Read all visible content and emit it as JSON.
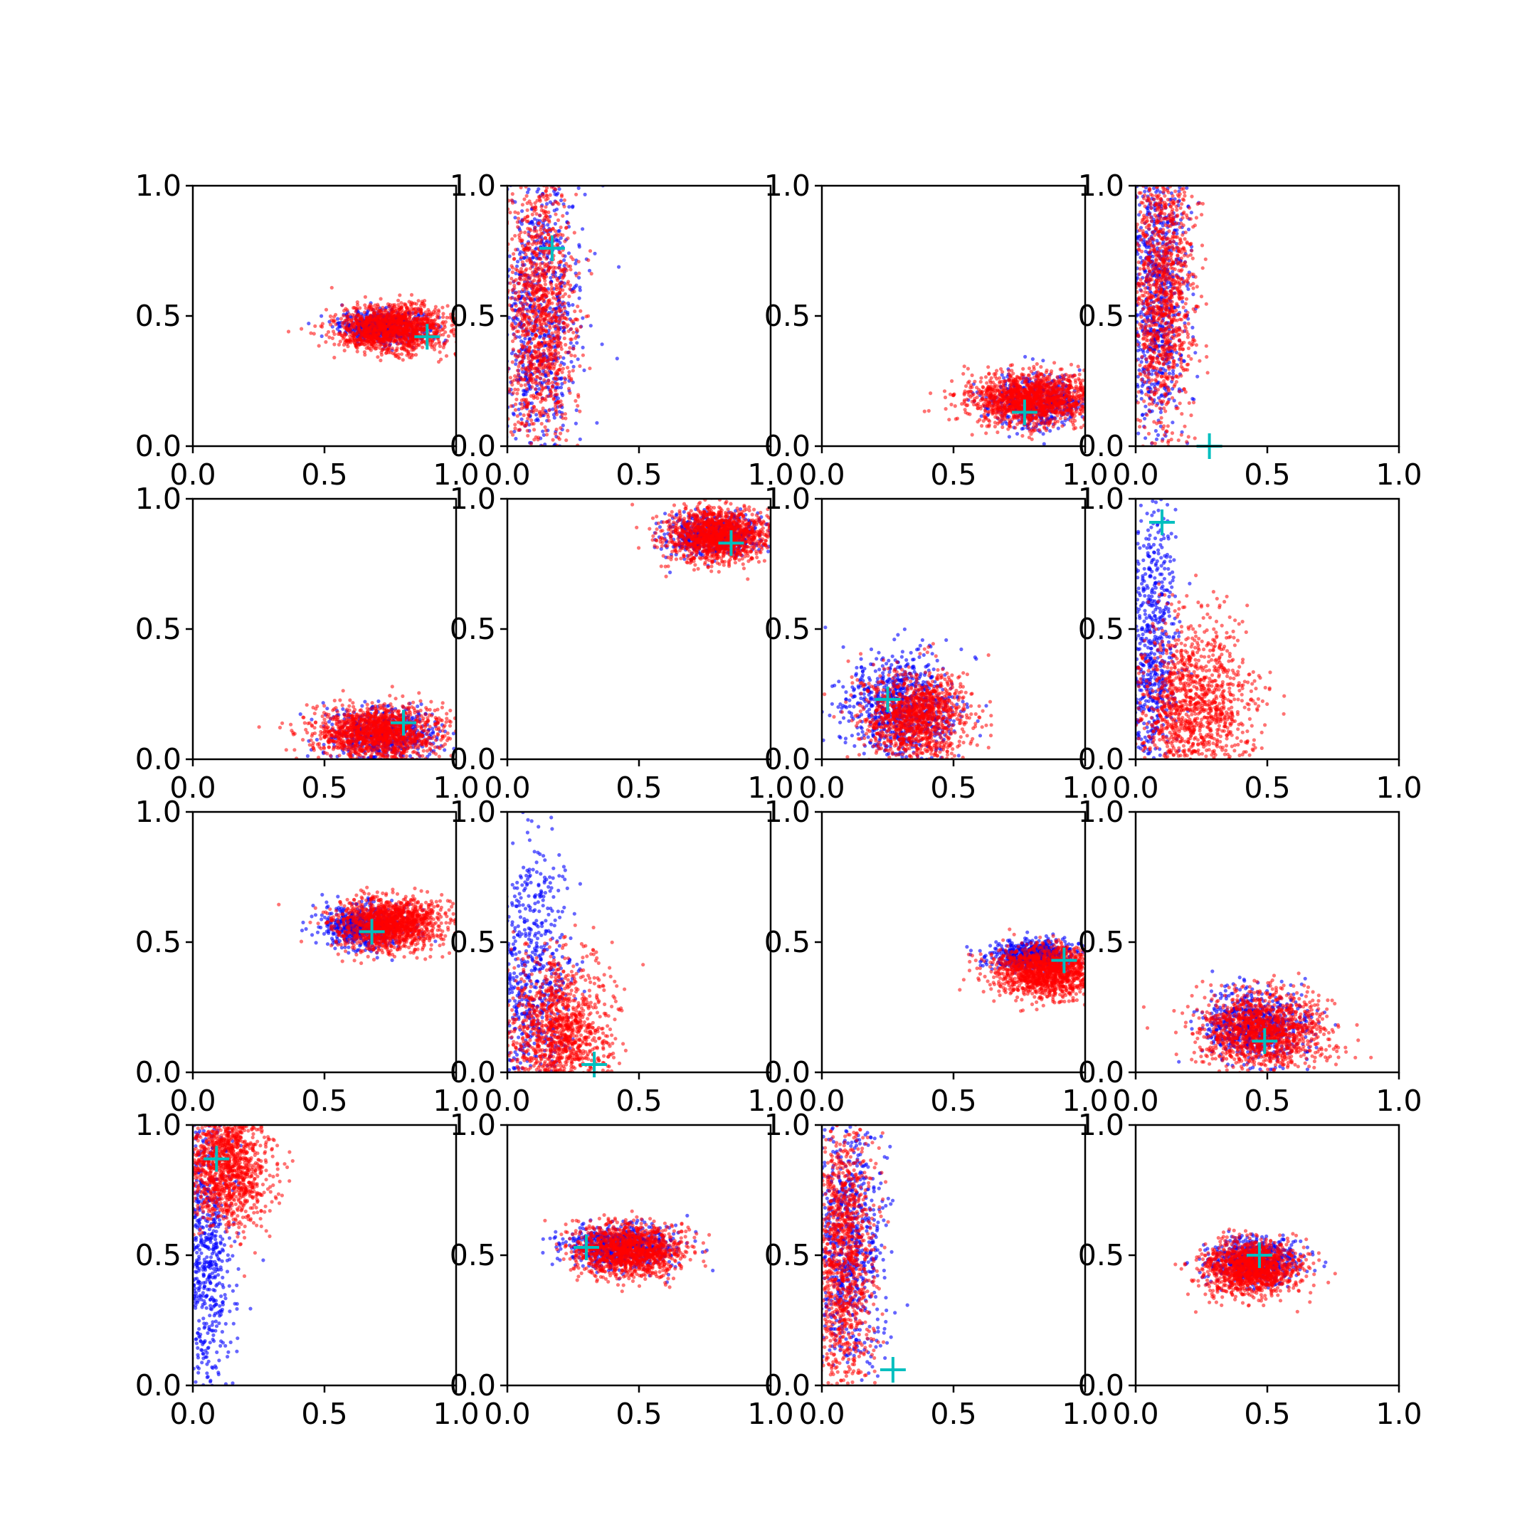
{
  "figure": {
    "rows": 4,
    "cols": 4
  },
  "colors": {
    "blue": "#0000ff",
    "red": "#ff0000",
    "marker": "#00bfbf",
    "axes": "#000000"
  },
  "chart_data": [
    {
      "type": "scatter",
      "row": 0,
      "col": 0,
      "xlim": [
        0,
        1
      ],
      "ylim": [
        0,
        1
      ],
      "xticks": [
        0,
        0.5,
        1
      ],
      "xtick_labels": [
        "0.0",
        "0.5",
        "1.0"
      ],
      "yticks": [
        0,
        0.5,
        1
      ],
      "ytick_labels": [
        "0.0",
        "0.5",
        "1.0"
      ],
      "marker": {
        "x": 0.89,
        "y": 0.42
      },
      "series": [
        {
          "color": "blue",
          "center": [
            0.72,
            0.46
          ],
          "spread": [
            0.08,
            0.03
          ],
          "count": 600
        },
        {
          "color": "red",
          "center": [
            0.76,
            0.45
          ],
          "spread": [
            0.11,
            0.045
          ],
          "count": 1400
        }
      ]
    },
    {
      "type": "scatter",
      "row": 0,
      "col": 1,
      "xlim": [
        0,
        1
      ],
      "ylim": [
        0,
        1
      ],
      "xticks": [
        0,
        0.5,
        1
      ],
      "xtick_labels": [
        "0.0",
        "0.5",
        "1.0"
      ],
      "yticks": [
        0,
        0.5,
        1
      ],
      "ytick_labels": [
        "0.0",
        "0.5",
        "1.0"
      ],
      "marker": {
        "x": 0.17,
        "y": 0.76
      },
      "series": [
        {
          "color": "blue",
          "center": [
            0.12,
            0.5
          ],
          "spread": [
            0.08,
            0.3
          ],
          "count": 800
        },
        {
          "color": "red",
          "center": [
            0.12,
            0.5
          ],
          "spread": [
            0.07,
            0.28
          ],
          "count": 1200
        }
      ]
    },
    {
      "type": "scatter",
      "row": 0,
      "col": 2,
      "xlim": [
        0,
        1
      ],
      "ylim": [
        0,
        1
      ],
      "xticks": [
        0,
        0.5,
        1
      ],
      "xtick_labels": [
        "0.0",
        "0.5",
        "1.0"
      ],
      "yticks": [
        0,
        0.5,
        1
      ],
      "ytick_labels": [
        "0.0",
        "0.5",
        "1.0"
      ],
      "marker": {
        "x": 0.77,
        "y": 0.13
      },
      "series": [
        {
          "color": "blue",
          "center": [
            0.82,
            0.17
          ],
          "spread": [
            0.09,
            0.05
          ],
          "count": 500
        },
        {
          "color": "red",
          "center": [
            0.8,
            0.18
          ],
          "spread": [
            0.12,
            0.05
          ],
          "count": 1500
        }
      ]
    },
    {
      "type": "scatter",
      "row": 0,
      "col": 3,
      "xlim": [
        0,
        1
      ],
      "ylim": [
        0,
        1
      ],
      "xticks": [
        0,
        0.5,
        1
      ],
      "xtick_labels": [
        "0.0",
        "0.5",
        "1.0"
      ],
      "yticks": [
        0,
        0.5,
        1
      ],
      "ytick_labels": [
        "0.0",
        "0.5",
        "1.0"
      ],
      "marker": {
        "x": 0.28,
        "y": 0.0
      },
      "series": [
        {
          "color": "blue",
          "center": [
            0.08,
            0.6
          ],
          "spread": [
            0.06,
            0.3
          ],
          "count": 800
        },
        {
          "color": "red",
          "center": [
            0.1,
            0.6
          ],
          "spread": [
            0.06,
            0.28
          ],
          "count": 1200
        }
      ]
    },
    {
      "type": "scatter",
      "row": 1,
      "col": 0,
      "xlim": [
        0,
        1
      ],
      "ylim": [
        0,
        1
      ],
      "xticks": [
        0,
        0.5,
        1
      ],
      "xtick_labels": [
        "0.0",
        "0.5",
        "1.0"
      ],
      "yticks": [
        0,
        0.5,
        1
      ],
      "ytick_labels": [
        "0.0",
        "0.5",
        "1.0"
      ],
      "marker": {
        "x": 0.8,
        "y": 0.14
      },
      "series": [
        {
          "color": "blue",
          "center": [
            0.72,
            0.1
          ],
          "spread": [
            0.1,
            0.05
          ],
          "count": 600
        },
        {
          "color": "red",
          "center": [
            0.7,
            0.1
          ],
          "spread": [
            0.12,
            0.05
          ],
          "count": 1400
        }
      ]
    },
    {
      "type": "scatter",
      "row": 1,
      "col": 1,
      "xlim": [
        0,
        1
      ],
      "ylim": [
        0,
        1
      ],
      "xticks": [
        0,
        0.5,
        1
      ],
      "xtick_labels": [
        "0.0",
        "0.5",
        "1.0"
      ],
      "yticks": [
        0,
        0.5,
        1
      ],
      "ytick_labels": [
        "0.0",
        "0.5",
        "1.0"
      ],
      "marker": {
        "x": 0.85,
        "y": 0.83
      },
      "series": [
        {
          "color": "blue",
          "center": [
            0.78,
            0.86
          ],
          "spread": [
            0.09,
            0.04
          ],
          "count": 600
        },
        {
          "color": "red",
          "center": [
            0.8,
            0.86
          ],
          "spread": [
            0.1,
            0.05
          ],
          "count": 1400
        }
      ]
    },
    {
      "type": "scatter",
      "row": 1,
      "col": 2,
      "xlim": [
        0,
        1
      ],
      "ylim": [
        0,
        1
      ],
      "xticks": [
        0,
        0.5,
        1
      ],
      "xtick_labels": [
        "0.0",
        "0.5",
        "1.0"
      ],
      "yticks": [
        0,
        0.5,
        1
      ],
      "ytick_labels": [
        "0.0",
        "0.5",
        "1.0"
      ],
      "marker": {
        "x": 0.25,
        "y": 0.23
      },
      "series": [
        {
          "color": "blue",
          "center": [
            0.3,
            0.2
          ],
          "spread": [
            0.11,
            0.1
          ],
          "count": 800
        },
        {
          "color": "red",
          "center": [
            0.36,
            0.16
          ],
          "spread": [
            0.1,
            0.09
          ],
          "count": 1200
        }
      ]
    },
    {
      "type": "scatter",
      "row": 1,
      "col": 3,
      "xlim": [
        0,
        1
      ],
      "ylim": [
        0,
        1
      ],
      "xticks": [
        0,
        0.5,
        1
      ],
      "xtick_labels": [
        "0.0",
        "0.5",
        "1.0"
      ],
      "yticks": [
        0,
        0.5,
        1
      ],
      "ytick_labels": [
        "0.0",
        "0.5",
        "1.0"
      ],
      "marker": {
        "x": 0.1,
        "y": 0.91
      },
      "series": [
        {
          "color": "blue",
          "center": [
            0.06,
            0.4
          ],
          "spread": [
            0.05,
            0.3
          ],
          "count": 700
        },
        {
          "color": "red",
          "center": [
            0.22,
            0.2
          ],
          "spread": [
            0.11,
            0.17
          ],
          "count": 1300
        }
      ]
    },
    {
      "type": "scatter",
      "row": 2,
      "col": 0,
      "xlim": [
        0,
        1
      ],
      "ylim": [
        0,
        1
      ],
      "xticks": [
        0,
        0.5,
        1
      ],
      "xtick_labels": [
        "0.0",
        "0.5",
        "1.0"
      ],
      "yticks": [
        0,
        0.5,
        1
      ],
      "ytick_labels": [
        "0.0",
        "0.5",
        "1.0"
      ],
      "marker": {
        "x": 0.68,
        "y": 0.54
      },
      "series": [
        {
          "color": "blue",
          "center": [
            0.65,
            0.56
          ],
          "spread": [
            0.08,
            0.04
          ],
          "count": 600
        },
        {
          "color": "red",
          "center": [
            0.75,
            0.57
          ],
          "spread": [
            0.1,
            0.05
          ],
          "count": 1400
        }
      ]
    },
    {
      "type": "scatter",
      "row": 2,
      "col": 1,
      "xlim": [
        0,
        1
      ],
      "ylim": [
        0,
        1
      ],
      "xticks": [
        0,
        0.5,
        1
      ],
      "xtick_labels": [
        "0.0",
        "0.5",
        "1.0"
      ],
      "yticks": [
        0,
        0.5,
        1
      ],
      "ytick_labels": [
        "0.0",
        "0.5",
        "1.0"
      ],
      "marker": {
        "x": 0.33,
        "y": 0.03
      },
      "series": [
        {
          "color": "blue",
          "center": [
            0.1,
            0.3
          ],
          "spread": [
            0.07,
            0.3
          ],
          "count": 700
        },
        {
          "color": "red",
          "center": [
            0.2,
            0.15
          ],
          "spread": [
            0.1,
            0.15
          ],
          "count": 1300
        }
      ]
    },
    {
      "type": "scatter",
      "row": 2,
      "col": 2,
      "xlim": [
        0,
        1
      ],
      "ylim": [
        0,
        1
      ],
      "xticks": [
        0,
        0.5,
        1
      ],
      "xtick_labels": [
        "0.0",
        "0.5",
        "1.0"
      ],
      "yticks": [
        0,
        0.5,
        1
      ],
      "ytick_labels": [
        "0.0",
        "0.5",
        "1.0"
      ],
      "marker": {
        "x": 0.92,
        "y": 0.43
      },
      "series": [
        {
          "color": "blue",
          "center": [
            0.8,
            0.45
          ],
          "spread": [
            0.08,
            0.03
          ],
          "count": 600
        },
        {
          "color": "red",
          "center": [
            0.85,
            0.39
          ],
          "spread": [
            0.1,
            0.05
          ],
          "count": 1400
        }
      ]
    },
    {
      "type": "scatter",
      "row": 2,
      "col": 3,
      "xlim": [
        0,
        1
      ],
      "ylim": [
        0,
        1
      ],
      "xticks": [
        0,
        0.5,
        1
      ],
      "xtick_labels": [
        "0.0",
        "0.5",
        "1.0"
      ],
      "yticks": [
        0,
        0.5,
        1
      ],
      "ytick_labels": [
        "0.0",
        "0.5",
        "1.0"
      ],
      "marker": {
        "x": 0.49,
        "y": 0.12
      },
      "series": [
        {
          "color": "blue",
          "center": [
            0.45,
            0.18
          ],
          "spread": [
            0.1,
            0.07
          ],
          "count": 700
        },
        {
          "color": "red",
          "center": [
            0.48,
            0.16
          ],
          "spread": [
            0.12,
            0.07
          ],
          "count": 1300
        }
      ]
    },
    {
      "type": "scatter",
      "row": 3,
      "col": 0,
      "xlim": [
        0,
        1
      ],
      "ylim": [
        0,
        1
      ],
      "xticks": [
        0,
        0.5,
        1
      ],
      "xtick_labels": [
        "0.0",
        "0.5",
        "1.0"
      ],
      "yticks": [
        0,
        0.5,
        1
      ],
      "ytick_labels": [
        "0.0",
        "0.5",
        "1.0"
      ],
      "marker": {
        "x": 0.09,
        "y": 0.87
      },
      "series": [
        {
          "color": "blue",
          "center": [
            0.05,
            0.5
          ],
          "spread": [
            0.05,
            0.3
          ],
          "count": 700
        },
        {
          "color": "red",
          "center": [
            0.13,
            0.85
          ],
          "spread": [
            0.08,
            0.12
          ],
          "count": 1300
        }
      ]
    },
    {
      "type": "scatter",
      "row": 3,
      "col": 1,
      "xlim": [
        0,
        1
      ],
      "ylim": [
        0,
        1
      ],
      "xticks": [
        0,
        0.5,
        1
      ],
      "xtick_labels": [
        "0.0",
        "0.5",
        "1.0"
      ],
      "yticks": [
        0,
        0.5,
        1
      ],
      "ytick_labels": [
        "0.0",
        "0.5",
        "1.0"
      ],
      "marker": {
        "x": 0.3,
        "y": 0.53
      },
      "series": [
        {
          "color": "blue",
          "center": [
            0.43,
            0.53
          ],
          "spread": [
            0.1,
            0.04
          ],
          "count": 700
        },
        {
          "color": "red",
          "center": [
            0.46,
            0.52
          ],
          "spread": [
            0.1,
            0.05
          ],
          "count": 1300
        }
      ]
    },
    {
      "type": "scatter",
      "row": 3,
      "col": 2,
      "xlim": [
        0,
        1
      ],
      "ylim": [
        0,
        1
      ],
      "xticks": [
        0,
        0.5,
        1
      ],
      "xtick_labels": [
        "0.0",
        "0.5",
        "1.0"
      ],
      "yticks": [
        0,
        0.5,
        1
      ],
      "ytick_labels": [
        "0.0",
        "0.5",
        "1.0"
      ],
      "marker": {
        "x": 0.27,
        "y": 0.06
      },
      "series": [
        {
          "color": "blue",
          "center": [
            0.1,
            0.55
          ],
          "spread": [
            0.07,
            0.28
          ],
          "count": 800
        },
        {
          "color": "red",
          "center": [
            0.08,
            0.5
          ],
          "spread": [
            0.06,
            0.28
          ],
          "count": 1200
        }
      ]
    },
    {
      "type": "scatter",
      "row": 3,
      "col": 3,
      "xlim": [
        0,
        1
      ],
      "ylim": [
        0,
        1
      ],
      "xticks": [
        0,
        0.5,
        1
      ],
      "xtick_labels": [
        "0.0",
        "0.5",
        "1.0"
      ],
      "yticks": [
        0,
        0.5,
        1
      ],
      "ytick_labels": [
        "0.0",
        "0.5",
        "1.0"
      ],
      "marker": {
        "x": 0.47,
        "y": 0.5
      },
      "series": [
        {
          "color": "blue",
          "center": [
            0.45,
            0.48
          ],
          "spread": [
            0.08,
            0.04
          ],
          "count": 700
        },
        {
          "color": "red",
          "center": [
            0.44,
            0.45
          ],
          "spread": [
            0.09,
            0.05
          ],
          "count": 1300
        }
      ]
    }
  ]
}
